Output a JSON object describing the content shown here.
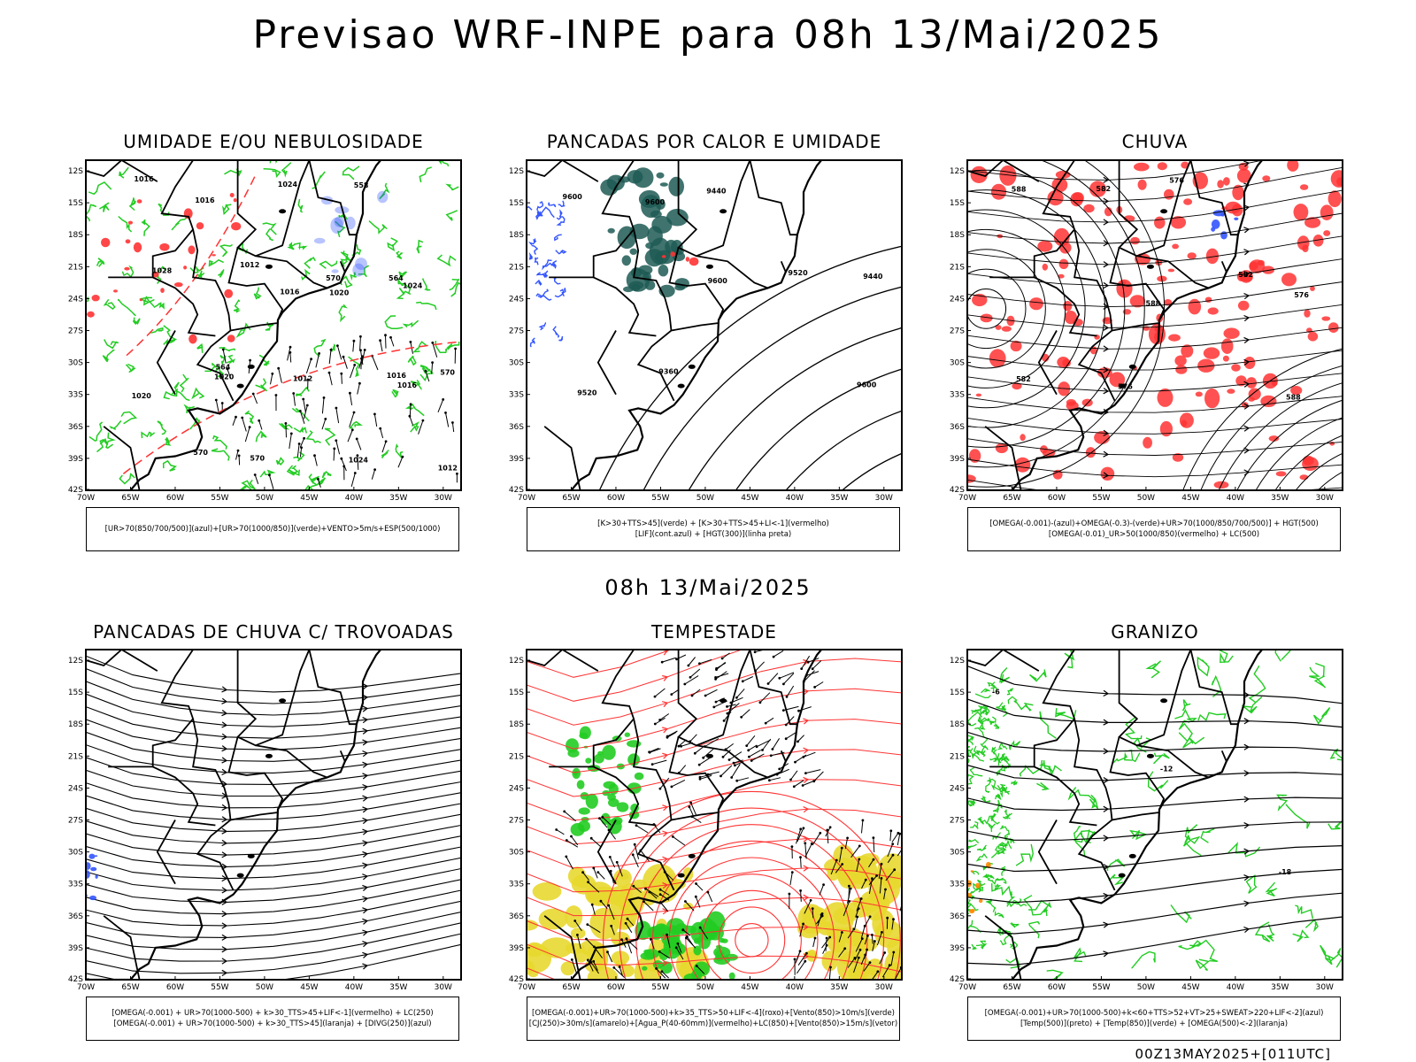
{
  "header": {
    "title": "Previsao WRF-INPE  para 08h 13/Mai/2025"
  },
  "subtitle": "08h 13/Mai/2025",
  "footer": "00Z13MAY2025+[011UTC]",
  "axes": {
    "lat_labels": [
      "12S",
      "15S",
      "18S",
      "21S",
      "24S",
      "27S",
      "30S",
      "33S",
      "36S",
      "39S",
      "42S"
    ],
    "lon_labels": [
      "70W",
      "65W",
      "60W",
      "55W",
      "50W",
      "45W",
      "40W",
      "35W",
      "30W"
    ]
  },
  "colors": {
    "green": "#22cc22",
    "red": "#ff3333",
    "blue": "#3355ff",
    "dark_teal": "#1f5a55",
    "yellow": "#e8d830",
    "orange": "#ff8800",
    "black": "#000000"
  },
  "panels": [
    {
      "title": "UMIDADE E/OU NEBULOSIDADE",
      "legend": [
        "[UR>70(850/700/500)](azul)+[UR>70(1000/850)](verde)+VENTO>5m/s+ESP(500/1000)"
      ],
      "contour_labels": [
        "1016",
        "1016",
        "1016",
        "1016",
        "1020",
        "1020",
        "1024",
        "1024",
        "1020",
        "1024",
        "1028",
        "1012",
        "1012",
        "1012",
        "1016",
        "570",
        "570",
        "570",
        "570",
        "564",
        "564",
        "558"
      ]
    },
    {
      "title": "PANCADAS POR CALOR E UMIDADE",
      "legend": [
        "[K>30+TTS>45](verde) + [K>30+TTS>45+LI<-1](vermelho)",
        "[LIF](cont.azul) + [HGT(300)](linha preta)"
      ],
      "contour_labels": [
        "9600",
        "9600",
        "9600",
        "9600",
        "9520",
        "9520",
        "9440",
        "9440",
        "9360"
      ]
    },
    {
      "title": "CHUVA",
      "legend": [
        "[OMEGA(-0.001)-(azul)+OMEGA(-0.3)-(verde)+UR>70(1000/850/700/500)] + HGT(500)",
        "[OMEGA(-0.01)_UR>50(1000/850)(vermelho) + LC(500)"
      ],
      "contour_labels": [
        "588",
        "588",
        "588",
        "582",
        "582",
        "582",
        "576",
        "576",
        "576"
      ]
    },
    {
      "title": "PANCADAS DE CHUVA C/ TROVOADAS",
      "legend": [
        "[OMEGA(-0.001) + UR>70(1000-500) + k>30_TTS>45+LIF<-1](vermelho) + LC(250)",
        "[OMEGA(-0.001) + UR>70(1000-500) + k>30_TTS>45](laranja) + [DIVG(250)](azul)"
      ],
      "contour_labels": []
    },
    {
      "title": "TEMPESTADE",
      "legend": [
        "[OMEGA(-0.001)+UR>70(1000-500)+k>35_TTS>50+LIF<-4](roxo)+[Vento(850)>10m/s](verde)",
        "[CJ(250)>30m/s](amarelo)+[Agua_P(40-60mm)](vermelho)+LC(850)+[Vento(850)>15m/s](vetor)"
      ],
      "contour_labels": []
    },
    {
      "title": "GRANIZO",
      "legend": [
        "[OMEGA(-0.001)+UR>70(1000-500)+k<60+TTS>52+VT>25+SWEAT>220+LIF<-2](azul)",
        "[Temp(500)](preto) + [Temp(850)](verde) + [OMEGA(500)<-2](laranja)"
      ],
      "contour_labels": [
        "-6",
        "-12",
        "-18"
      ]
    }
  ]
}
